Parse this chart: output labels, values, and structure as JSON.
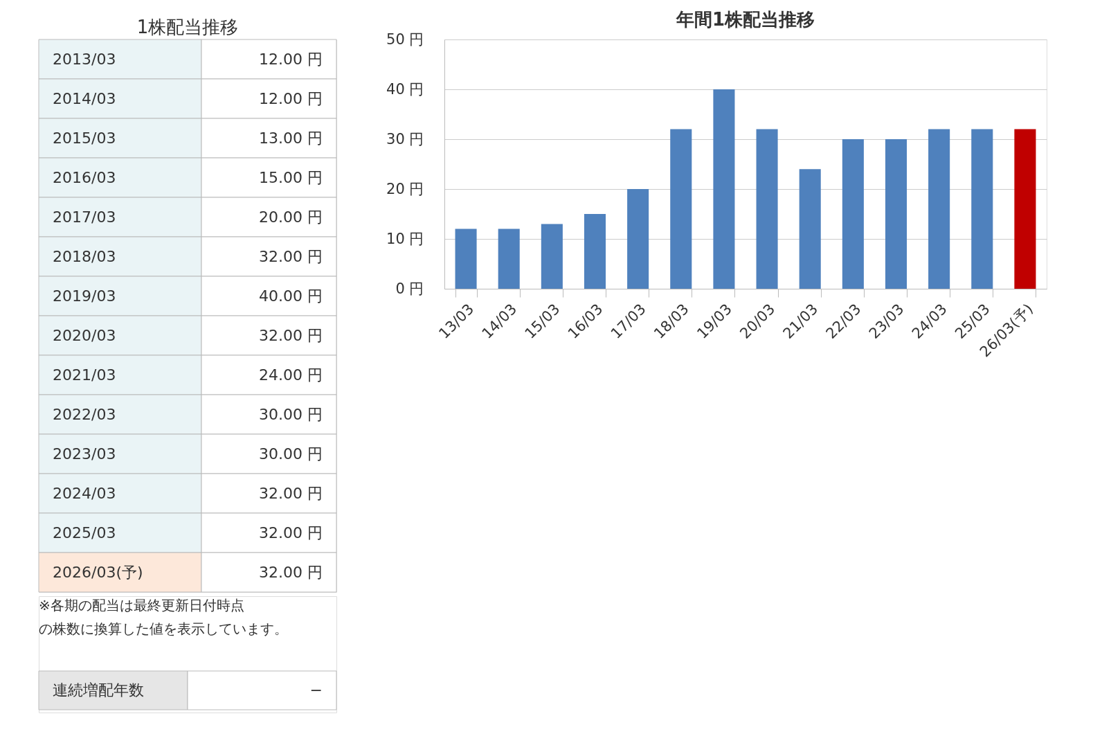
{
  "chart_data": [
    {
      "type": "other",
      "title": "1株配当推移",
      "categories": [
        "2013/03",
        "2014/03",
        "2015/03",
        "2016/03",
        "2017/03",
        "2018/03",
        "2019/03",
        "2020/03",
        "2021/03",
        "2022/03",
        "2023/03",
        "2024/03",
        "2025/03",
        "2026/03(予)"
      ],
      "value_labels": [
        "12.00 円",
        "12.00 円",
        "13.00 円",
        "15.00 円",
        "20.00 円",
        "32.00 円",
        "40.00 円",
        "32.00 円",
        "24.00 円",
        "30.00 円",
        "30.00 円",
        "32.00 円",
        "32.00 円",
        "32.00 円"
      ],
      "colors": [
        "#eaf4f6",
        "#eaf4f6",
        "#eaf4f6",
        "#eaf4f6",
        "#eaf4f6",
        "#eaf4f6",
        "#eaf4f6",
        "#eaf4f6",
        "#eaf4f6",
        "#eaf4f6",
        "#eaf4f6",
        "#eaf4f6",
        "#eaf4f6",
        "#fde8da"
      ],
      "annotations": [
        "※各期の配当は最終更新日付時点",
        "の株数に換算した値を表示しています。",
        "連続増配年数",
        "−"
      ]
    },
    {
      "type": "bar",
      "title": "年間1株配当推移",
      "categories": [
        "13/03",
        "14/03",
        "15/03",
        "16/03",
        "17/03",
        "18/03",
        "19/03",
        "20/03",
        "21/03",
        "22/03",
        "23/03",
        "24/03",
        "25/03",
        "26/03(予)"
      ],
      "values": [
        12,
        12,
        13,
        15,
        20,
        32,
        40,
        32,
        24,
        30,
        30,
        32,
        32,
        32
      ],
      "colors": [
        "#4f81bd",
        "#4f81bd",
        "#4f81bd",
        "#4f81bd",
        "#4f81bd",
        "#4f81bd",
        "#4f81bd",
        "#4f81bd",
        "#4f81bd",
        "#4f81bd",
        "#4f81bd",
        "#4f81bd",
        "#4f81bd",
        "#c00000"
      ],
      "ylim": [
        0,
        50
      ],
      "yticks": [
        {
          "value": 0,
          "label": "0 円"
        },
        {
          "value": 10,
          "label": "10 円"
        },
        {
          "value": 20,
          "label": "20 円"
        },
        {
          "value": 30,
          "label": "30 円"
        },
        {
          "value": 40,
          "label": "40 円"
        },
        {
          "value": 50,
          "label": "50 円"
        }
      ],
      "grid": "y"
    }
  ]
}
